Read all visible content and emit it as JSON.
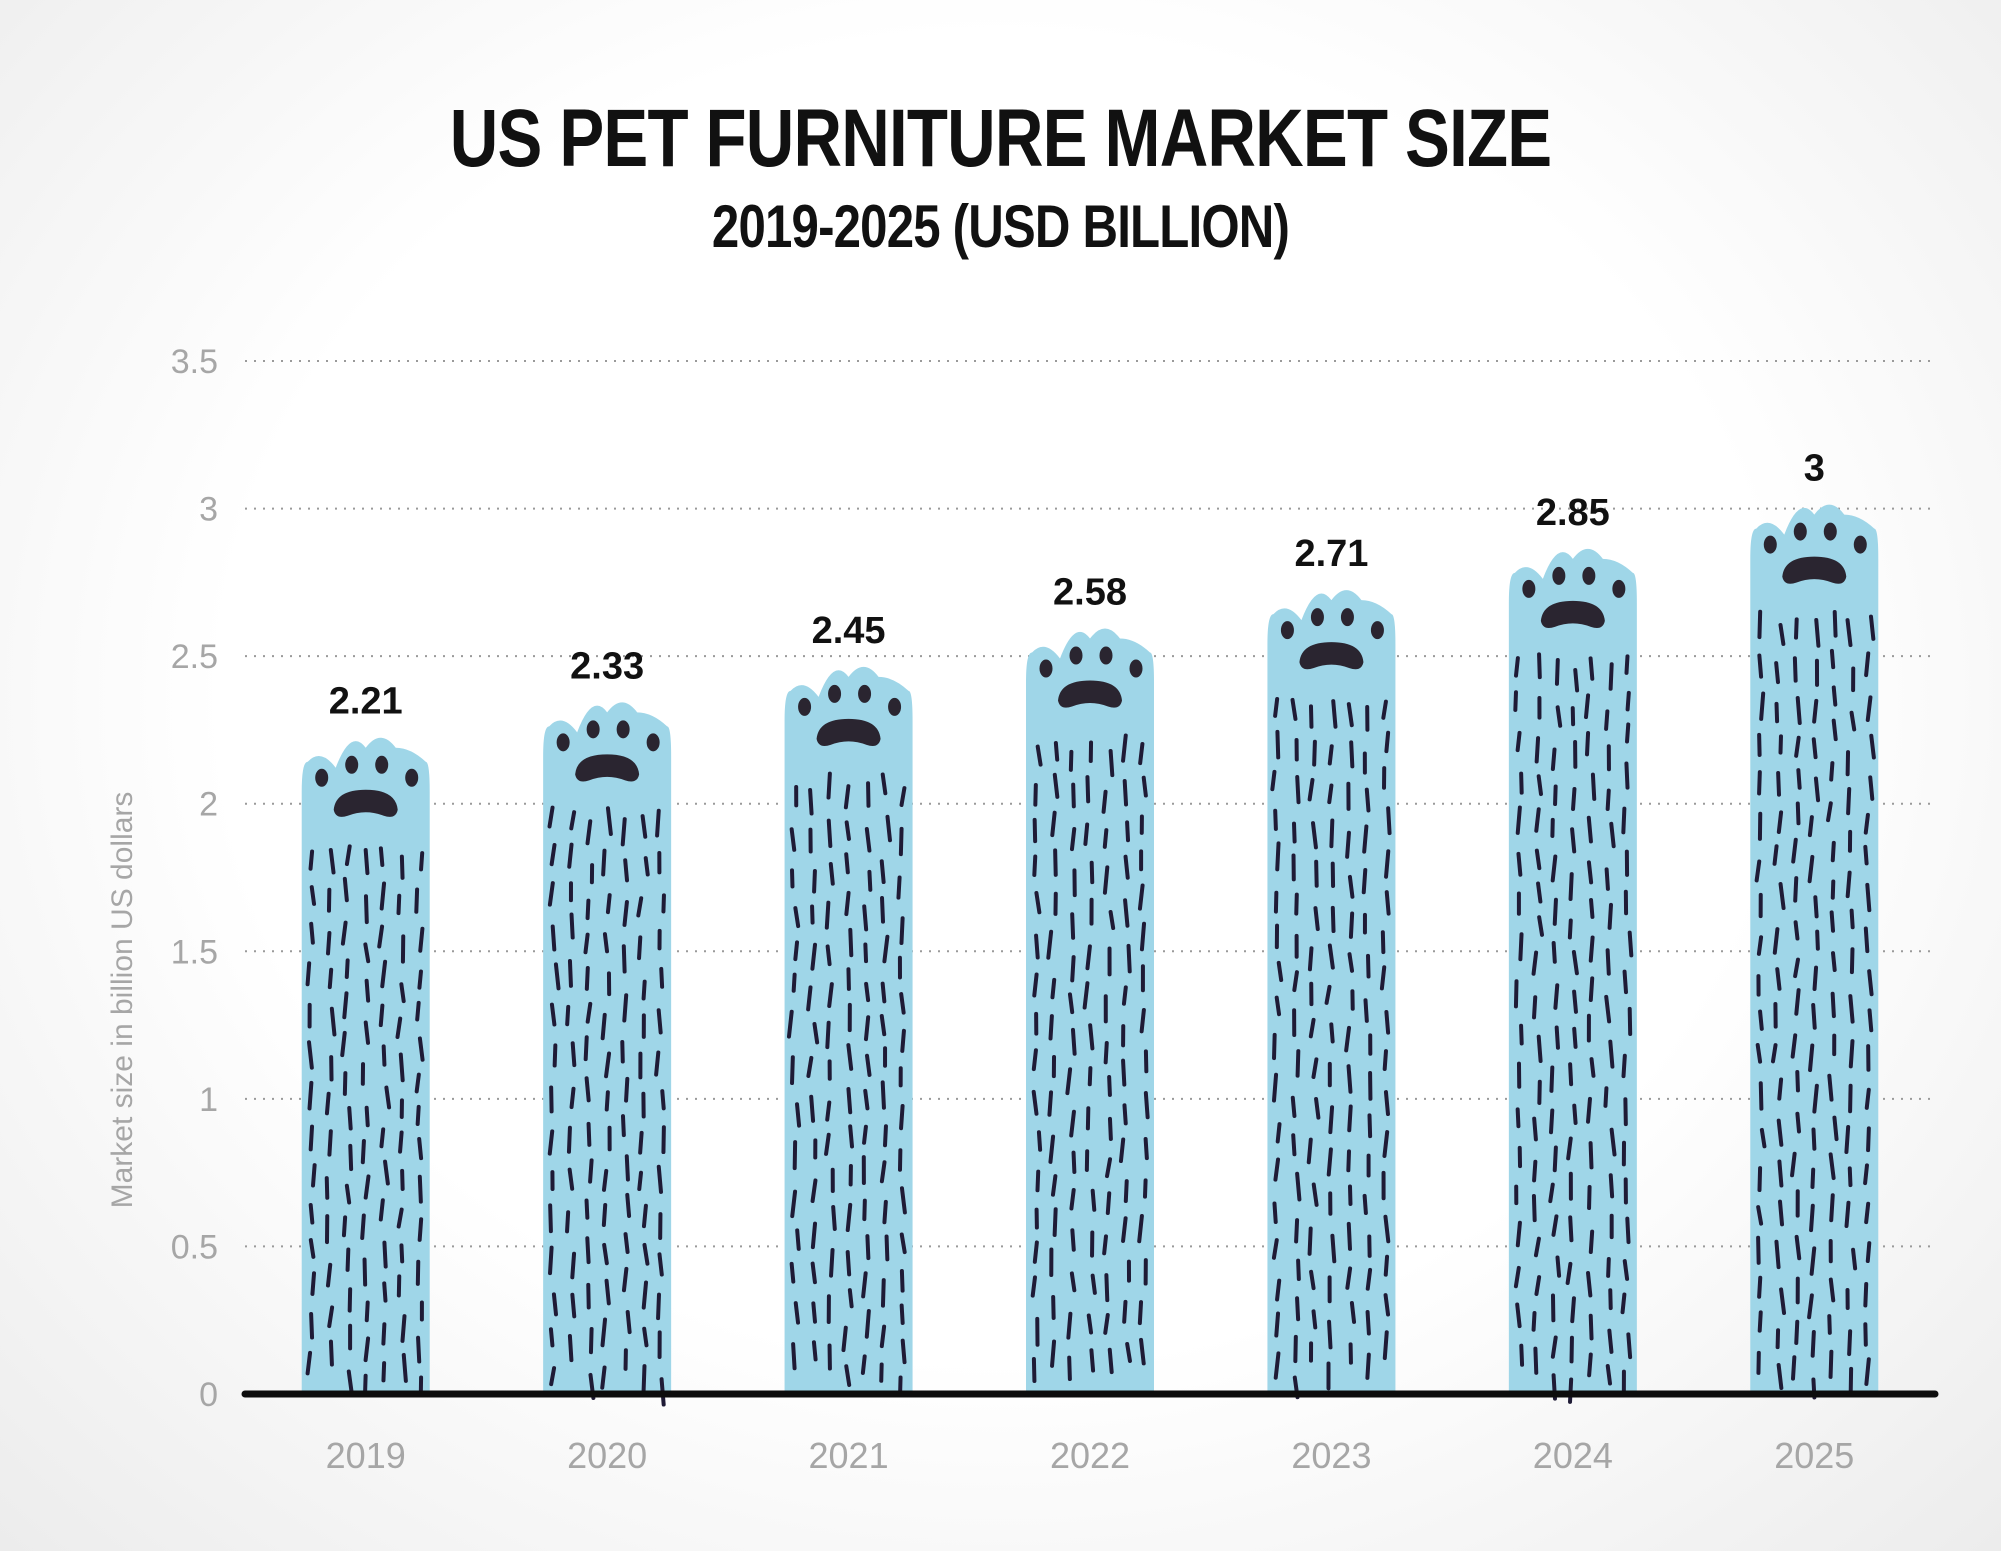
{
  "chart_data": {
    "type": "bar",
    "title": "US PET FURNITURE MARKET SIZE",
    "subtitle": "2019-2025 (USD BILLION)",
    "ylabel": "Market size in billion US dollars",
    "xlabel": "",
    "categories": [
      "2019",
      "2020",
      "2021",
      "2022",
      "2023",
      "2024",
      "2025"
    ],
    "values": [
      2.21,
      2.33,
      2.45,
      2.58,
      2.71,
      2.85,
      3
    ],
    "value_labels": [
      "2.21",
      "2.33",
      "2.45",
      "2.58",
      "2.71",
      "2.85",
      "3"
    ],
    "ylim": [
      0,
      3.5
    ],
    "yticks": [
      0,
      0.5,
      1,
      1.5,
      2,
      2.5,
      3,
      3.5
    ],
    "ytick_labels": [
      "0",
      "0.5",
      "1",
      "1.5",
      "2",
      "2.5",
      "3",
      "3.5"
    ],
    "grid": "dotted horizontal",
    "legend": "none",
    "colors": {
      "bar": "#9fd6e8",
      "fur_marks": "#1f1b36",
      "paw_pads": "#2a2530",
      "axis": "#0d0d0d",
      "tick_text": "#a6a6a6",
      "grid": "#9a9a9a"
    }
  }
}
